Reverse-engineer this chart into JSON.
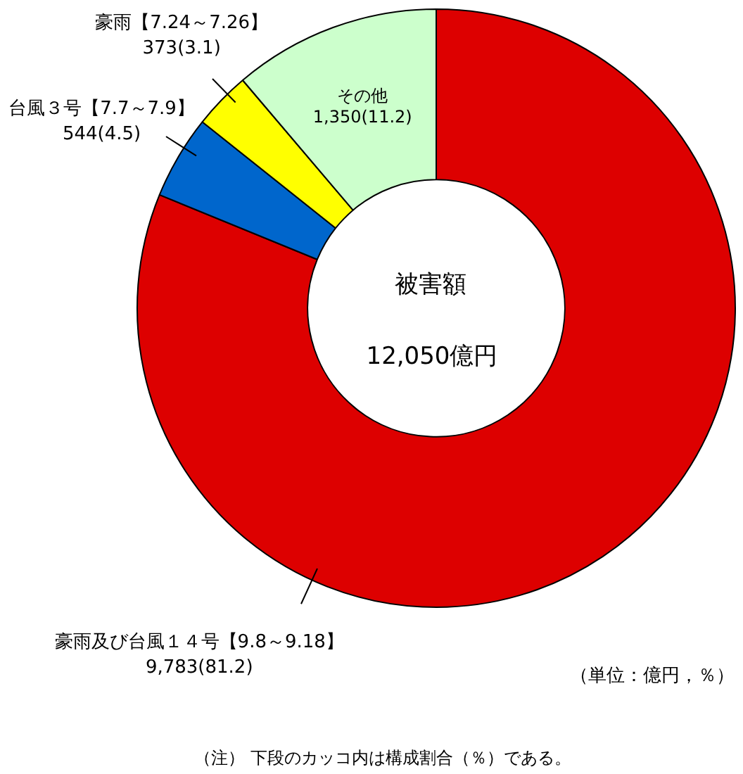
{
  "chart_data": {
    "type": "donut",
    "categories": [
      "豪雨及び台風１４号【9.8～9.18】",
      "台風３号【7.7～7.9】",
      "豪雨【7.24～7.26】",
      "その他"
    ],
    "values": [
      9783,
      544,
      373,
      1350
    ],
    "colors": [
      "#dd0000",
      "#0066cc",
      "#ffff00",
      "#ccffcc"
    ],
    "value_labels": [
      "9,783(81.2)",
      "544(4.5)",
      "373(3.1)",
      "1,350(11.2)"
    ],
    "annotations": [
      "被害額",
      "12,050億円",
      "（単位：億円，％）",
      "（注） 下段のカッコ内は構成割合（％）である。"
    ]
  }
}
